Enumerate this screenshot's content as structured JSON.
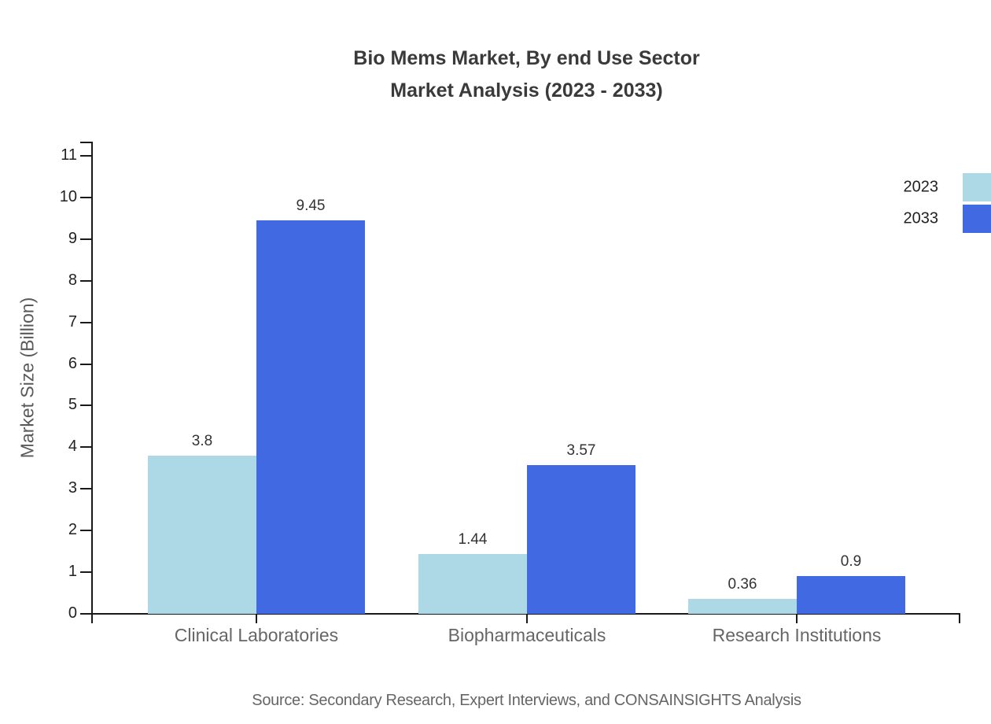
{
  "header": {
    "title_line1": "Bio Mems Market, By end Use Sector",
    "title_line2": "Market Analysis (2023 - 2033)"
  },
  "footer": {
    "source": "Source: Secondary Research, Expert Interviews, and CONSAINSIGHTS Analysis"
  },
  "chart_data": {
    "type": "bar",
    "title": "Bio Mems Market, By end Use Sector Market Analysis (2023 - 2033)",
    "categories": [
      "Clinical Laboratories",
      "Biopharmaceuticals",
      "Research Institutions"
    ],
    "series": [
      {
        "name": "2023",
        "color": "#ADD8E6",
        "values": [
          3.8,
          1.44,
          0.36
        ]
      },
      {
        "name": "2033",
        "color": "#4169E1",
        "values": [
          9.45,
          3.57,
          0.9
        ]
      }
    ],
    "xlabel": "",
    "ylabel": "Market Size (Billion)",
    "ylim": [
      0,
      11
    ],
    "yticks": [
      0,
      1,
      2,
      3,
      4,
      5,
      6,
      7,
      8,
      9,
      10,
      11
    ],
    "grid": false,
    "legend_position": "top-right",
    "axis_color": "#1a1a1a",
    "tick_label_color": "#222222",
    "category_label_color": "#666666",
    "value_label_color": "#333333"
  }
}
